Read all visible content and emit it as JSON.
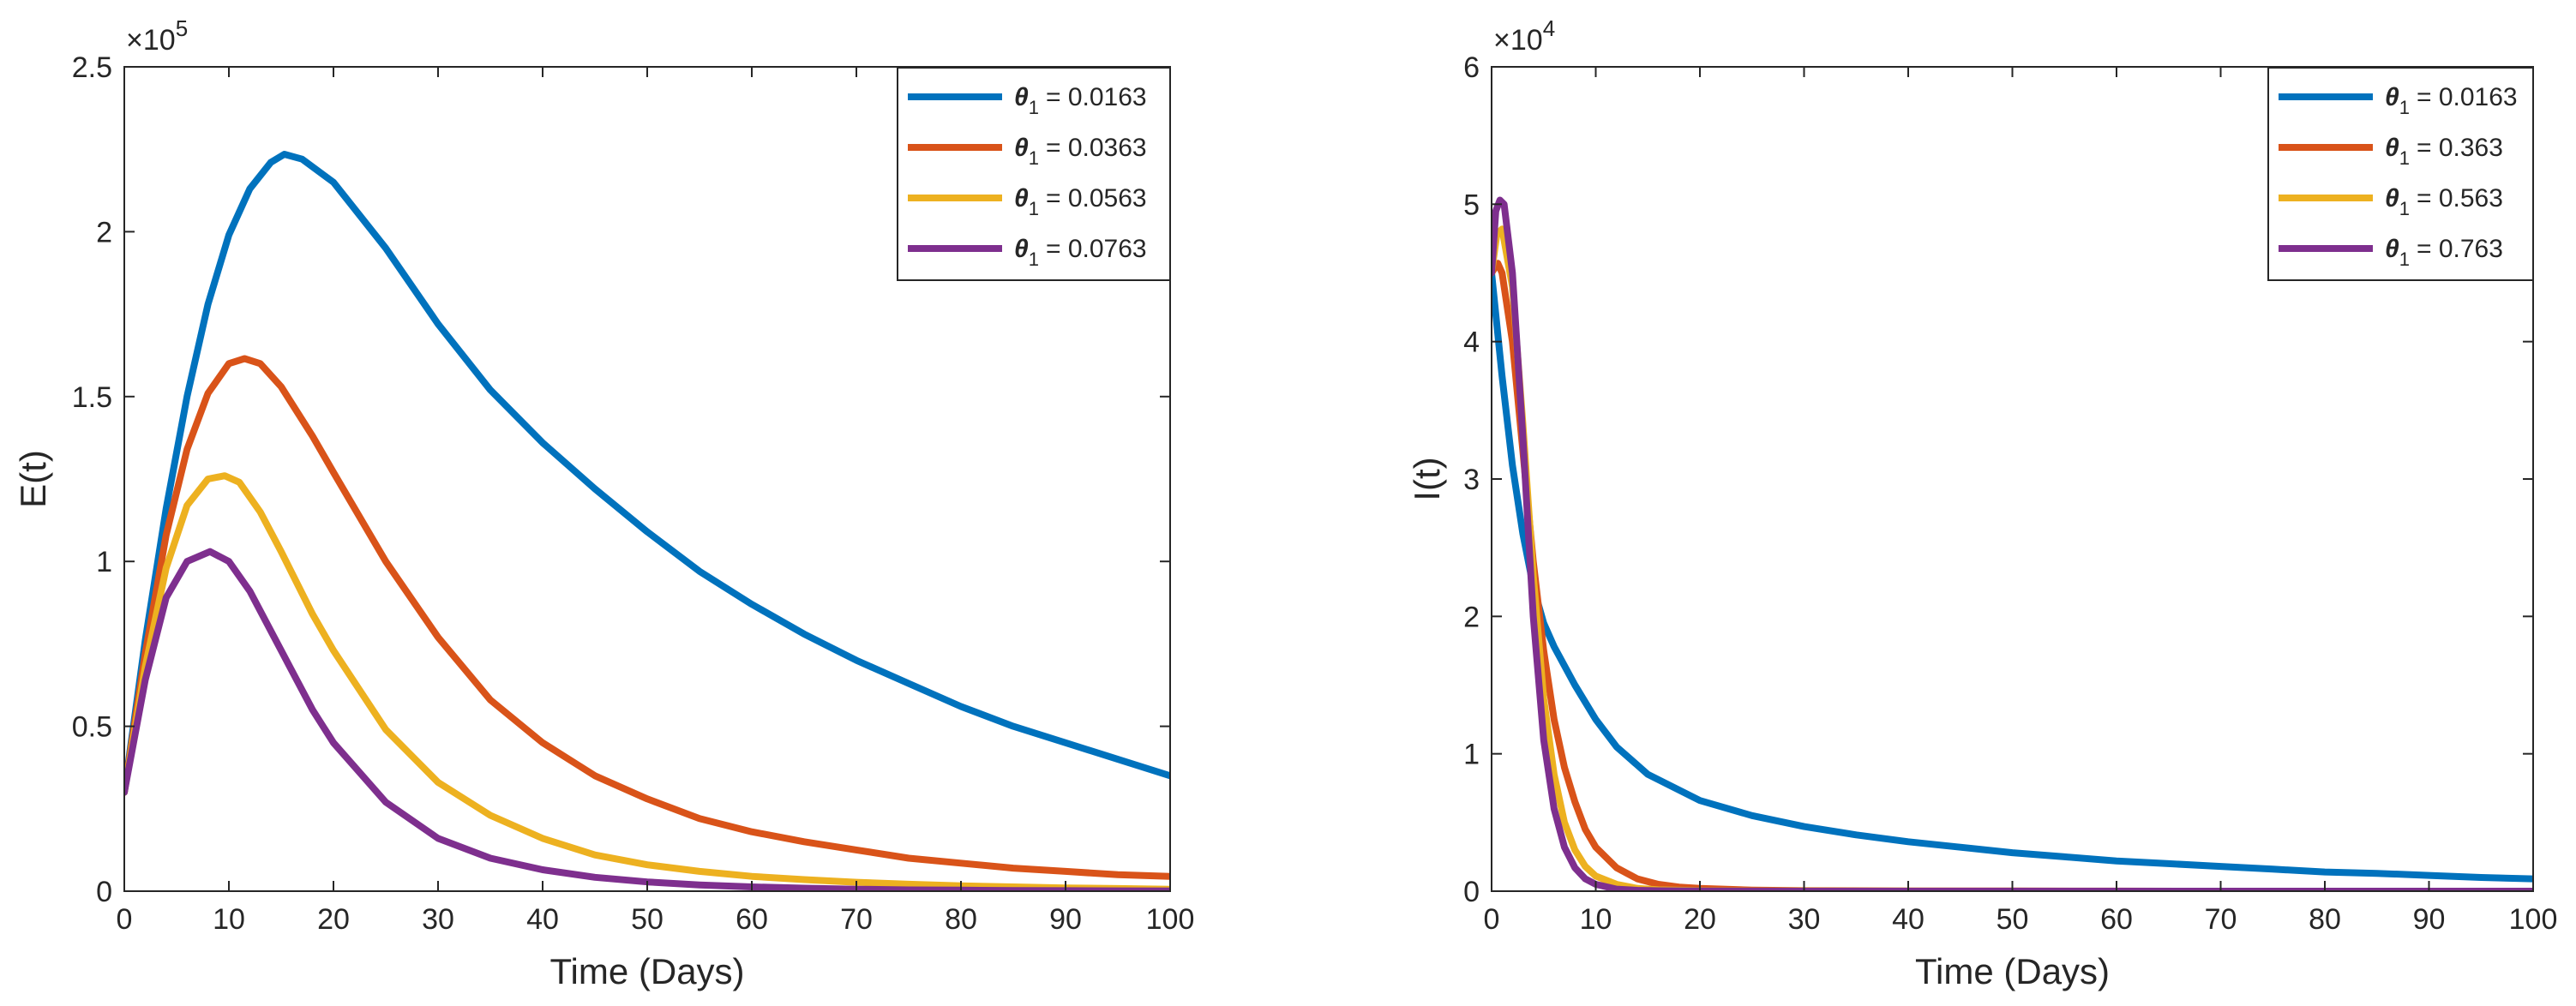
{
  "chart_data": [
    {
      "type": "line",
      "title": "",
      "xlabel": "Time (Days)",
      "ylabel": "E(t)",
      "xlim": [
        0,
        100
      ],
      "ylim": [
        0,
        2.5
      ],
      "y_exponent_label": "×10",
      "y_exponent_power": "5",
      "xticks": [
        "0",
        "10",
        "20",
        "30",
        "40",
        "50",
        "60",
        "70",
        "80",
        "90",
        "100"
      ],
      "yticks": [
        "0",
        "0.5",
        "1",
        "1.5",
        "2",
        "2.5"
      ],
      "legend_position": "top-right",
      "series": [
        {
          "name": "θ1 = 0.0163",
          "legend_symbol": "θ",
          "legend_sub": "1",
          "legend_value": "= 0.0163",
          "color": "#0072BD",
          "x": [
            0,
            2,
            4,
            6,
            8,
            10,
            12,
            14,
            15.3,
            17,
            20,
            25,
            30,
            35,
            40,
            45,
            50,
            55,
            60,
            65,
            70,
            75,
            80,
            85,
            90,
            95,
            100
          ],
          "y": [
            0.3,
            0.76,
            1.16,
            1.5,
            1.78,
            1.99,
            2.13,
            2.21,
            2.235,
            2.22,
            2.15,
            1.95,
            1.72,
            1.52,
            1.36,
            1.22,
            1.09,
            0.97,
            0.87,
            0.78,
            0.7,
            0.63,
            0.56,
            0.5,
            0.45,
            0.4,
            0.35
          ]
        },
        {
          "name": "θ1 = 0.0363",
          "legend_symbol": "θ",
          "legend_sub": "1",
          "legend_value": "= 0.0363",
          "color": "#D95319",
          "x": [
            0,
            2,
            4,
            6,
            8,
            10,
            11.5,
            13,
            15,
            18,
            20,
            25,
            30,
            35,
            40,
            45,
            50,
            55,
            60,
            65,
            70,
            75,
            80,
            85,
            90,
            95,
            100
          ],
          "y": [
            0.3,
            0.72,
            1.08,
            1.34,
            1.51,
            1.6,
            1.615,
            1.6,
            1.53,
            1.38,
            1.27,
            1.0,
            0.77,
            0.58,
            0.45,
            0.35,
            0.28,
            0.22,
            0.18,
            0.15,
            0.125,
            0.1,
            0.085,
            0.07,
            0.06,
            0.05,
            0.045
          ]
        },
        {
          "name": "θ1 = 0.0563",
          "legend_symbol": "θ",
          "legend_sub": "1",
          "legend_value": "= 0.0563",
          "color": "#EDB120",
          "x": [
            0,
            2,
            4,
            6,
            8,
            9.6,
            11,
            13,
            15,
            18,
            20,
            25,
            30,
            35,
            40,
            45,
            50,
            55,
            60,
            65,
            70,
            75,
            80,
            85,
            90,
            95,
            100
          ],
          "y": [
            0.3,
            0.68,
            0.98,
            1.17,
            1.25,
            1.26,
            1.24,
            1.15,
            1.03,
            0.84,
            0.73,
            0.49,
            0.33,
            0.23,
            0.16,
            0.11,
            0.08,
            0.06,
            0.045,
            0.035,
            0.027,
            0.021,
            0.016,
            0.013,
            0.01,
            0.008,
            0.006
          ]
        },
        {
          "name": "θ1 = 0.0763",
          "legend_symbol": "θ",
          "legend_sub": "1",
          "legend_value": "= 0.0763",
          "color": "#7E2F8E",
          "x": [
            0,
            2,
            4,
            6,
            8.2,
            10,
            12,
            14,
            16,
            18,
            20,
            25,
            30,
            35,
            40,
            45,
            50,
            55,
            60,
            65,
            70,
            75,
            80,
            85,
            90,
            95,
            100
          ],
          "y": [
            0.3,
            0.64,
            0.89,
            1.0,
            1.03,
            1.0,
            0.91,
            0.79,
            0.67,
            0.55,
            0.45,
            0.27,
            0.16,
            0.1,
            0.065,
            0.042,
            0.028,
            0.019,
            0.013,
            0.009,
            0.006,
            0.004,
            0.003,
            0.002,
            0.0015,
            0.001,
            0.0008
          ]
        }
      ]
    },
    {
      "type": "line",
      "title": "",
      "xlabel": "Time (Days)",
      "ylabel": "I(t)",
      "xlim": [
        0,
        100
      ],
      "ylim": [
        0,
        6
      ],
      "y_exponent_label": "×10",
      "y_exponent_power": "4",
      "xticks": [
        "0",
        "10",
        "20",
        "30",
        "40",
        "50",
        "60",
        "70",
        "80",
        "90",
        "100"
      ],
      "yticks": [
        "0",
        "1",
        "2",
        "3",
        "4",
        "5",
        "6"
      ],
      "legend_position": "top-right",
      "series": [
        {
          "name": "θ1 = 0.0163",
          "legend_symbol": "θ",
          "legend_sub": "1",
          "legend_value": "= 0.0163",
          "color": "#0072BD",
          "x": [
            0,
            1,
            2,
            3,
            4,
            5,
            6,
            8,
            10,
            12,
            15,
            20,
            25,
            30,
            35,
            40,
            45,
            50,
            55,
            60,
            65,
            70,
            75,
            80,
            85,
            90,
            95,
            100
          ],
          "y": [
            4.5,
            3.75,
            3.1,
            2.6,
            2.22,
            1.95,
            1.78,
            1.5,
            1.25,
            1.05,
            0.85,
            0.66,
            0.55,
            0.47,
            0.41,
            0.36,
            0.32,
            0.28,
            0.25,
            0.22,
            0.2,
            0.18,
            0.16,
            0.14,
            0.13,
            0.115,
            0.1,
            0.09
          ]
        },
        {
          "name": "θ1 = 0.363",
          "legend_symbol": "θ",
          "legend_sub": "1",
          "legend_value": "= 0.363",
          "color": "#D95319",
          "x": [
            0,
            0.6,
            1,
            2,
            3,
            4,
            5,
            6,
            7,
            8,
            9,
            10,
            12,
            14,
            16,
            18,
            20,
            25,
            30,
            40,
            50,
            60,
            70,
            80,
            90,
            100
          ],
          "y": [
            4.5,
            4.57,
            4.5,
            4.0,
            3.2,
            2.4,
            1.75,
            1.25,
            0.9,
            0.65,
            0.45,
            0.32,
            0.17,
            0.09,
            0.05,
            0.03,
            0.02,
            0.008,
            0.004,
            0.002,
            0.001,
            0.0005,
            0.0003,
            0.0002,
            0.0001,
            0.0001
          ]
        },
        {
          "name": "θ1 = 0.563",
          "legend_symbol": "θ",
          "legend_sub": "1",
          "legend_value": "= 0.563",
          "color": "#EDB120",
          "x": [
            0,
            0.5,
            1,
            2,
            3,
            4,
            5,
            6,
            7,
            8,
            9,
            10,
            12,
            14,
            16,
            20,
            25,
            30,
            40,
            50,
            60,
            70,
            80,
            90,
            100
          ],
          "y": [
            4.5,
            4.78,
            4.82,
            4.4,
            3.4,
            2.3,
            1.4,
            0.85,
            0.5,
            0.3,
            0.18,
            0.11,
            0.05,
            0.02,
            0.01,
            0.004,
            0.002,
            0.001,
            0.0005,
            0.0002,
            0.0001,
            0.0001,
            0.0001,
            0.0001,
            0.0001
          ]
        },
        {
          "name": "θ1 = 0.763",
          "legend_symbol": "θ",
          "legend_sub": "1",
          "legend_value": "= 0.763",
          "color": "#7E2F8E",
          "x": [
            0,
            0.4,
            0.8,
            1.2,
            2,
            3,
            4,
            5,
            6,
            7,
            8,
            9,
            10,
            12,
            14,
            16,
            20,
            25,
            30,
            40,
            50,
            60,
            70,
            80,
            90,
            100
          ],
          "y": [
            4.5,
            4.95,
            5.03,
            5.0,
            4.5,
            3.3,
            2.0,
            1.1,
            0.6,
            0.32,
            0.17,
            0.09,
            0.05,
            0.015,
            0.006,
            0.003,
            0.001,
            0.0005,
            0.0002,
            0.0001,
            0.0001,
            0.0001,
            0.0001,
            0.0001,
            0.0001,
            0.0001
          ]
        }
      ]
    }
  ]
}
